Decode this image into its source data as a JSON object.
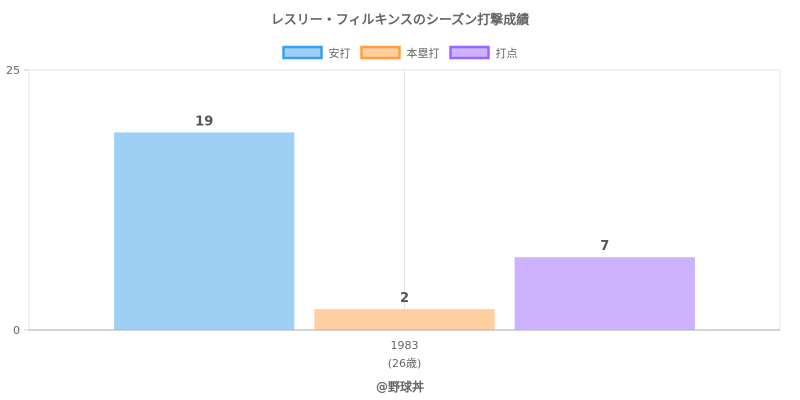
{
  "chart_data": {
    "type": "bar",
    "title": "レスリー・フィルキンスのシーズン打撃成績",
    "categories": [
      "1983"
    ],
    "category_sublabels": [
      "(26歳)"
    ],
    "series": [
      {
        "name": "安打",
        "values": [
          19
        ],
        "fill": "#9ecff5",
        "stroke": "#36a2eb"
      },
      {
        "name": "本塁打",
        "values": [
          2
        ],
        "fill": "#ffcf9f",
        "stroke": "#ff9f40"
      },
      {
        "name": "打点",
        "values": [
          7
        ],
        "fill": "#ccb2ff",
        "stroke": "#9966ff"
      }
    ],
    "ylim": [
      0,
      25
    ],
    "yticks": [
      0,
      25
    ],
    "legend_position": "top",
    "grid": true,
    "xlabel": "",
    "ylabel": ""
  },
  "credit": "@野球丼"
}
